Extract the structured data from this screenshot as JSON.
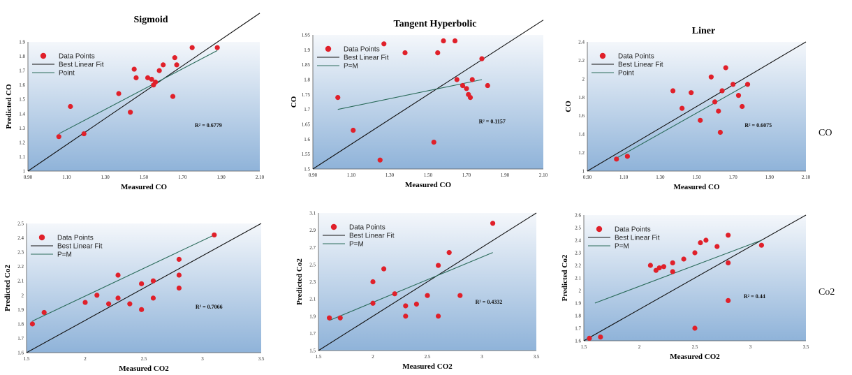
{
  "row_labels": [
    "CO",
    "Co2"
  ],
  "colors": {
    "point": "#e0202a",
    "bestfit": "#2a6b5a",
    "perfect": "#111111",
    "bg_top": "#f4f7fb",
    "bg_bottom": "#8fb3d9"
  },
  "chart_data": [
    {
      "type": "scatter",
      "title": "Sigmoid",
      "xlabel": "Measured CO",
      "ylabel": "Predicted CO",
      "xlim": [
        0.9,
        2.1
      ],
      "ylim": [
        1.0,
        1.9
      ],
      "xticks": [
        "0.90",
        "1.10",
        "1.30",
        "1.50",
        "1.70",
        "1.90",
        "2.10"
      ],
      "yticks": [
        "1",
        "1.1",
        "1.2",
        "1.3",
        "1.4",
        "1.5",
        "1.6",
        "1.7",
        "1.8",
        "1.9"
      ],
      "legend": [
        "Data Points",
        "Best Linear Fit",
        "Point"
      ],
      "r_label": "R² = 0.6779",
      "points": [
        [
          1.06,
          1.24
        ],
        [
          1.12,
          1.45
        ],
        [
          1.19,
          1.26
        ],
        [
          1.37,
          1.54
        ],
        [
          1.45,
          1.71
        ],
        [
          1.46,
          1.65
        ],
        [
          1.52,
          1.65
        ],
        [
          1.54,
          1.64
        ],
        [
          1.55,
          1.6
        ],
        [
          1.56,
          1.62
        ],
        [
          1.58,
          1.7
        ],
        [
          1.6,
          1.74
        ],
        [
          1.65,
          1.52
        ],
        [
          1.66,
          1.79
        ],
        [
          1.67,
          1.74
        ],
        [
          1.43,
          1.41
        ],
        [
          1.88,
          1.86
        ],
        [
          1.75,
          1.86
        ]
      ],
      "fit": [
        [
          1.06,
          1.26
        ],
        [
          1.88,
          1.84
        ]
      ],
      "perfect": [
        [
          0.9,
          1.0
        ],
        [
          2.1,
          2.1
        ]
      ]
    },
    {
      "type": "scatter",
      "title": "Tangent Hyperbolic",
      "xlabel": "Measured CO",
      "ylabel": "CO",
      "xlim": [
        0.9,
        2.1
      ],
      "ylim": [
        1.5,
        1.95
      ],
      "xticks": [
        "0.90",
        "1.10",
        "1.30",
        "1.50",
        "1.70",
        "1.90",
        "2.10"
      ],
      "yticks": [
        "1.5",
        "1.55",
        "1.6",
        "1.65",
        "1.7",
        "1.75",
        "1.8",
        "1.85",
        "1.9",
        "1.95"
      ],
      "legend": [
        "Data Points",
        "Best Linear Fit",
        "P=M"
      ],
      "r_label": "R² = 0.1157",
      "points": [
        [
          1.03,
          1.74
        ],
        [
          1.11,
          1.63
        ],
        [
          1.25,
          1.53
        ],
        [
          1.27,
          1.92
        ],
        [
          1.38,
          1.89
        ],
        [
          1.53,
          1.59
        ],
        [
          1.55,
          1.89
        ],
        [
          1.58,
          1.93
        ],
        [
          1.64,
          1.93
        ],
        [
          1.65,
          1.8
        ],
        [
          1.68,
          1.78
        ],
        [
          1.7,
          1.77
        ],
        [
          1.71,
          1.75
        ],
        [
          1.72,
          1.74
        ],
        [
          1.73,
          1.8
        ],
        [
          1.78,
          1.87
        ],
        [
          1.81,
          1.78
        ]
      ],
      "fit": [
        [
          1.03,
          1.7
        ],
        [
          1.78,
          1.8
        ]
      ],
      "perfect": [
        [
          0.9,
          1.5
        ],
        [
          2.1,
          2.0
        ]
      ]
    },
    {
      "type": "scatter",
      "title": "Liner",
      "xlabel": "Measured CO",
      "ylabel": "CO",
      "xlim": [
        0.9,
        2.1
      ],
      "ylim": [
        1.0,
        2.4
      ],
      "xticks": [
        "0.90",
        "1.10",
        "1.30",
        "1.50",
        "1.70",
        "1.90",
        "2.10"
      ],
      "yticks": [
        "1",
        "1.2",
        "1.4",
        "1.6",
        "1.8",
        "2",
        "2.2",
        "2.4"
      ],
      "legend": [
        "Data Points",
        "Best Linear Fit",
        "Point"
      ],
      "r_label": "R² = 0.6075",
      "points": [
        [
          1.06,
          1.13
        ],
        [
          1.12,
          1.16
        ],
        [
          1.37,
          1.87
        ],
        [
          1.42,
          1.68
        ],
        [
          1.47,
          1.85
        ],
        [
          1.52,
          1.55
        ],
        [
          1.58,
          2.02
        ],
        [
          1.6,
          1.75
        ],
        [
          1.62,
          1.65
        ],
        [
          1.64,
          1.87
        ],
        [
          1.66,
          2.12
        ],
        [
          1.7,
          1.94
        ],
        [
          1.73,
          1.82
        ],
        [
          1.75,
          1.7
        ],
        [
          1.78,
          1.94
        ],
        [
          1.63,
          1.42
        ]
      ],
      "fit": [
        [
          1.06,
          1.14
        ],
        [
          1.78,
          1.94
        ]
      ],
      "perfect": [
        [
          0.9,
          1.0
        ],
        [
          2.1,
          2.4
        ]
      ]
    },
    {
      "type": "scatter",
      "title": "",
      "xlabel": "Measured CO2",
      "ylabel": "Predicted Co2",
      "xlim": [
        1.5,
        3.5
      ],
      "ylim": [
        1.6,
        2.5
      ],
      "xticks": [
        "1.5",
        "2",
        "2.5",
        "3",
        "3.5"
      ],
      "yticks": [
        "1.6",
        "1.7",
        "1.8",
        "1.9",
        "2",
        "2.1",
        "2.2",
        "2.3",
        "2.4",
        "2.5"
      ],
      "legend": [
        "Data Points",
        "Best Linear Fit",
        "P=M"
      ],
      "r_label": "R² = 0.7066",
      "points": [
        [
          1.55,
          1.8
        ],
        [
          1.65,
          1.88
        ],
        [
          2.0,
          1.95
        ],
        [
          2.1,
          2.0
        ],
        [
          2.2,
          1.94
        ],
        [
          2.28,
          1.98
        ],
        [
          2.28,
          2.14
        ],
        [
          2.38,
          1.94
        ],
        [
          2.48,
          1.9
        ],
        [
          2.48,
          2.08
        ],
        [
          2.58,
          1.98
        ],
        [
          2.58,
          2.1
        ],
        [
          2.8,
          2.05
        ],
        [
          2.8,
          2.14
        ],
        [
          2.8,
          2.25
        ],
        [
          3.1,
          2.42
        ]
      ],
      "fit": [
        [
          1.55,
          1.82
        ],
        [
          3.1,
          2.42
        ]
      ],
      "perfect": [
        [
          1.5,
          1.6
        ],
        [
          3.5,
          2.5
        ]
      ]
    },
    {
      "type": "scatter",
      "title": "",
      "xlabel": "Measured CO2",
      "ylabel": "Predicted Co2",
      "xlim": [
        1.5,
        3.5
      ],
      "ylim": [
        1.5,
        3.1
      ],
      "xticks": [
        "1.5",
        "2",
        "2.5",
        "3",
        "3.5"
      ],
      "yticks": [
        "1.5",
        "1.7",
        "1.9",
        "2.1",
        "2.3",
        "2.5",
        "2.7",
        "2.9",
        "3.1"
      ],
      "legend": [
        "Data Points",
        "Best Linear Fit",
        "P=M"
      ],
      "r_label": "R² = 0.4332",
      "points": [
        [
          1.6,
          1.88
        ],
        [
          1.7,
          1.88
        ],
        [
          2.0,
          2.05
        ],
        [
          2.0,
          2.3
        ],
        [
          2.1,
          2.45
        ],
        [
          2.2,
          2.16
        ],
        [
          2.3,
          1.9
        ],
        [
          2.3,
          2.02
        ],
        [
          2.4,
          2.04
        ],
        [
          2.5,
          2.14
        ],
        [
          2.6,
          2.49
        ],
        [
          2.6,
          1.9
        ],
        [
          2.7,
          2.64
        ],
        [
          2.8,
          2.14
        ],
        [
          3.1,
          2.98
        ]
      ],
      "fit": [
        [
          1.6,
          1.85
        ],
        [
          3.1,
          2.64
        ]
      ],
      "perfect": [
        [
          1.5,
          1.5
        ],
        [
          3.5,
          3.1
        ]
      ]
    },
    {
      "type": "scatter",
      "title": "",
      "xlabel": "Measured CO2",
      "ylabel": "Predicted Co2",
      "xlim": [
        1.5,
        3.5
      ],
      "ylim": [
        1.6,
        2.6
      ],
      "xticks": [
        "1.5",
        "2",
        "2.5",
        "3",
        "3.5"
      ],
      "yticks": [
        "1.6",
        "1.7",
        "1.8",
        "1.9",
        "2",
        "2.1",
        "2.2",
        "2.3",
        "2.4",
        "2.5",
        "2.6"
      ],
      "legend": [
        "Data Points",
        "Best Linear Fit",
        "P=M"
      ],
      "r_label": "R² = 0.44",
      "points": [
        [
          1.55,
          1.62
        ],
        [
          1.65,
          1.63
        ],
        [
          2.1,
          2.2
        ],
        [
          2.15,
          2.16
        ],
        [
          2.18,
          2.18
        ],
        [
          2.22,
          2.19
        ],
        [
          2.3,
          2.22
        ],
        [
          2.3,
          2.15
        ],
        [
          2.4,
          2.25
        ],
        [
          2.5,
          2.3
        ],
        [
          2.5,
          1.7
        ],
        [
          2.55,
          2.38
        ],
        [
          2.6,
          2.4
        ],
        [
          2.7,
          2.35
        ],
        [
          2.8,
          2.44
        ],
        [
          2.8,
          2.22
        ],
        [
          2.8,
          1.92
        ],
        [
          3.1,
          2.36
        ]
      ],
      "fit": [
        [
          1.6,
          1.9
        ],
        [
          3.1,
          2.4
        ]
      ],
      "perfect": [
        [
          1.5,
          1.6
        ],
        [
          3.5,
          2.6
        ]
      ]
    }
  ]
}
